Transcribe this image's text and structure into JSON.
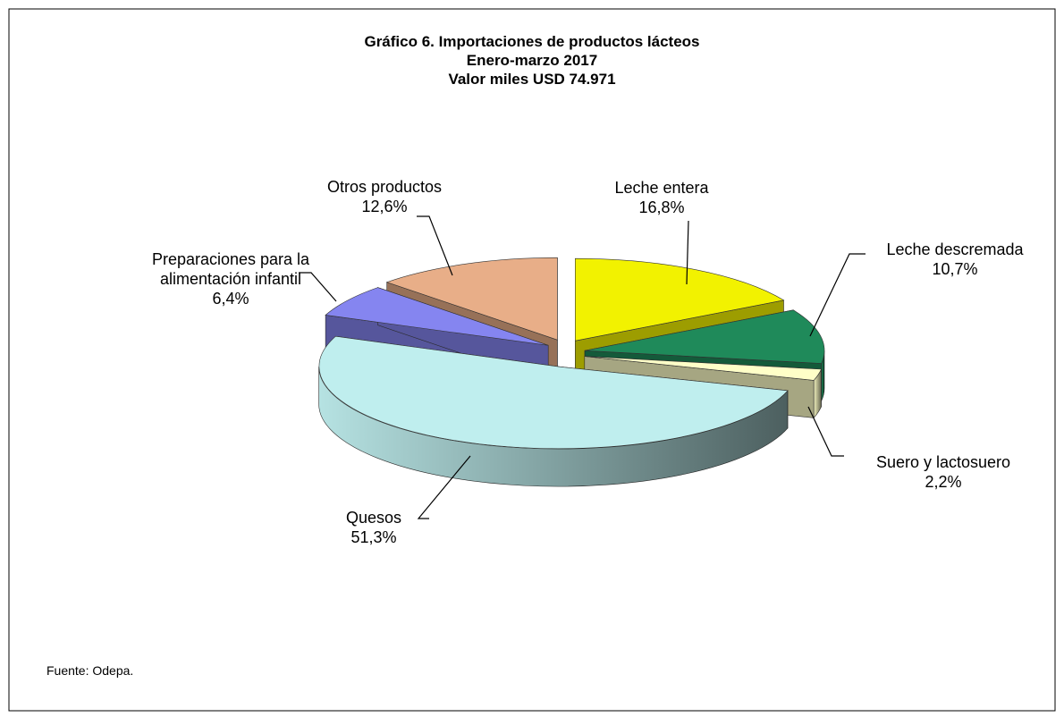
{
  "chart_data": {
    "type": "pie3d",
    "title": "Gráfico 6. Importaciones de productos lácteos",
    "subtitle": [
      "Enero-marzo 2017",
      "Valor miles USD 74.971"
    ],
    "categories": [
      "Leche entera",
      "Leche descremada",
      "Suero y lactosuero",
      "Quesos",
      "Preparaciones para la alimentación infantil",
      "Otros productos"
    ],
    "values": [
      16.8,
      10.7,
      2.2,
      51.3,
      6.4,
      12.6
    ],
    "value_labels": [
      "16,8%",
      "10,7%",
      "2,2%",
      "51,3%",
      "6,4%",
      "12,6%"
    ],
    "colors": [
      "#f2f200",
      "#1f8a5a",
      "#ffffc8",
      "#bfeeee",
      "#8585f0",
      "#e8ae88"
    ],
    "source": "Fuente: Odepa."
  }
}
